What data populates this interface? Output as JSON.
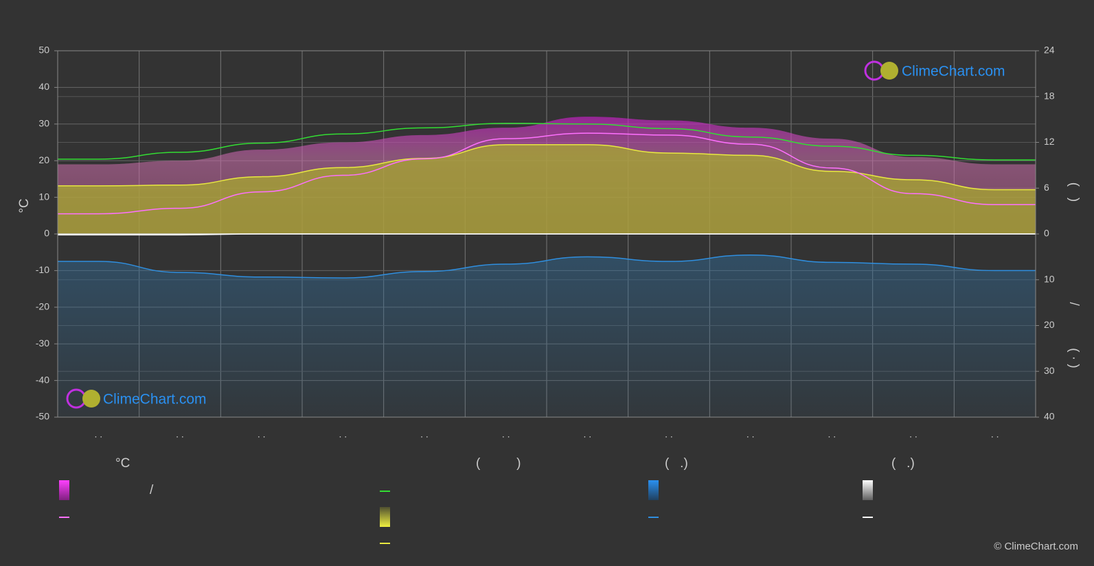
{
  "chart_data": {
    "type": "line",
    "categories": [
      ". .",
      ". .",
      ". .",
      ". .",
      ". .",
      ". .",
      ". .",
      ". .",
      ". .",
      ". .",
      ". .",
      ". ."
    ],
    "y_label": "°C",
    "ylim": [
      -50,
      50
    ],
    "yticks": [
      -50,
      -40,
      -30,
      -20,
      -10,
      0,
      10,
      20,
      30,
      40,
      50
    ],
    "y2lim": [
      0,
      24
    ],
    "y2ticks": [
      0,
      6,
      12,
      18,
      24
    ],
    "y3lim": [
      0,
      40
    ],
    "y3ticks": [
      10,
      20,
      30,
      40
    ],
    "y2_labels": [
      "(   )",
      "/",
      "( · )"
    ],
    "grid": true,
    "temp_max": {
      "color": "#c020c0",
      "values": [
        19,
        20,
        23,
        25,
        27,
        29,
        32,
        31,
        29,
        26,
        21,
        19
      ]
    },
    "series": [
      {
        "color": "#33dd33",
        "axis": "y2",
        "values": [
          9.8,
          10.7,
          11.9,
          13.1,
          13.9,
          14.5,
          14.4,
          13.8,
          12.7,
          11.5,
          10.3,
          9.7
        ]
      },
      {
        "color": "#e8e840",
        "axis": "y2",
        "fill": "#a8a830",
        "values": [
          6.3,
          6.4,
          7.5,
          8.7,
          9.9,
          11.7,
          11.7,
          10.6,
          10.3,
          8.2,
          7.1,
          5.8
        ]
      },
      {
        "color": "#ff70ff",
        "axis": "y",
        "values": [
          5.5,
          7,
          11.5,
          16,
          20.5,
          26,
          27.5,
          27,
          24.5,
          18,
          11,
          8
        ]
      },
      {
        "color": "#2f8fe0",
        "axis": "y3",
        "values": [
          6,
          8.4,
          9.4,
          9.6,
          8.2,
          6.6,
          5,
          6,
          4.6,
          6.2,
          6.6,
          8
        ]
      },
      {
        "color": "#ffffff",
        "axis": "y3",
        "values": [
          0.2,
          0.2,
          0,
          0,
          0,
          0,
          0,
          0,
          0,
          0,
          0,
          0
        ]
      }
    ],
    "legend": {
      "headers": [
        "°C",
        "(          )",
        "(   .)",
        "(   .)"
      ],
      "labels": [
        "/"
      ]
    },
    "logo": "ClimeChart.com",
    "copyright": "© ClimeChart.com"
  }
}
